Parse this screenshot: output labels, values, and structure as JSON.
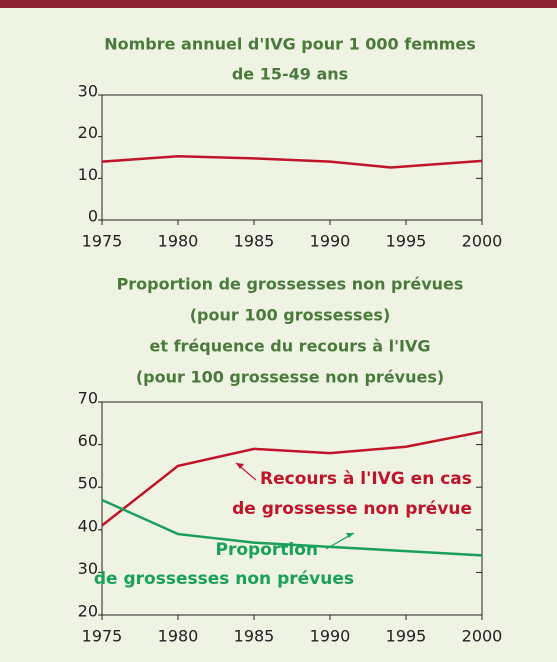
{
  "chart_data": [
    {
      "type": "line",
      "title": [
        "Nombre annuel d'IVG pour 1 000 femmes",
        "de 15-49 ans"
      ],
      "x": [
        1975,
        1980,
        1985,
        1990,
        1994,
        2000
      ],
      "series": [
        {
          "color": "#c0142a",
          "values": [
            14,
            15.3,
            14.8,
            14,
            12.6,
            14.2
          ]
        }
      ],
      "xlim": [
        1975,
        2000
      ],
      "xticks": [
        1975,
        1980,
        1985,
        1990,
        1995,
        2000
      ],
      "ylim": [
        0,
        30
      ],
      "yticks": [
        0,
        10,
        20,
        30
      ]
    },
    {
      "type": "line",
      "title": [
        "Proportion de grossesses non prévues",
        "(pour 100 grossesses)",
        "et fréquence du recours à l'IVG",
        "(pour 100 grossesse non prévues)"
      ],
      "x": [
        1975,
        1980,
        1985,
        1990,
        1995,
        2000
      ],
      "series": [
        {
          "name": [
            "Recours à l'IVG en cas",
            "de grossesse non prévue"
          ],
          "color": "#c0142a",
          "values": [
            41,
            55,
            59,
            58,
            59.5,
            63
          ]
        },
        {
          "name": [
            "Proportion",
            "de grossesses non prévues"
          ],
          "color": "#1aa05a",
          "values": [
            47,
            39,
            37,
            36,
            35,
            34
          ]
        }
      ],
      "xlim": [
        1975,
        2000
      ],
      "xticks": [
        1975,
        1980,
        1985,
        1990,
        1995,
        2000
      ],
      "ylim": [
        20,
        70
      ],
      "yticks": [
        20,
        30,
        40,
        50,
        60,
        70
      ]
    }
  ]
}
